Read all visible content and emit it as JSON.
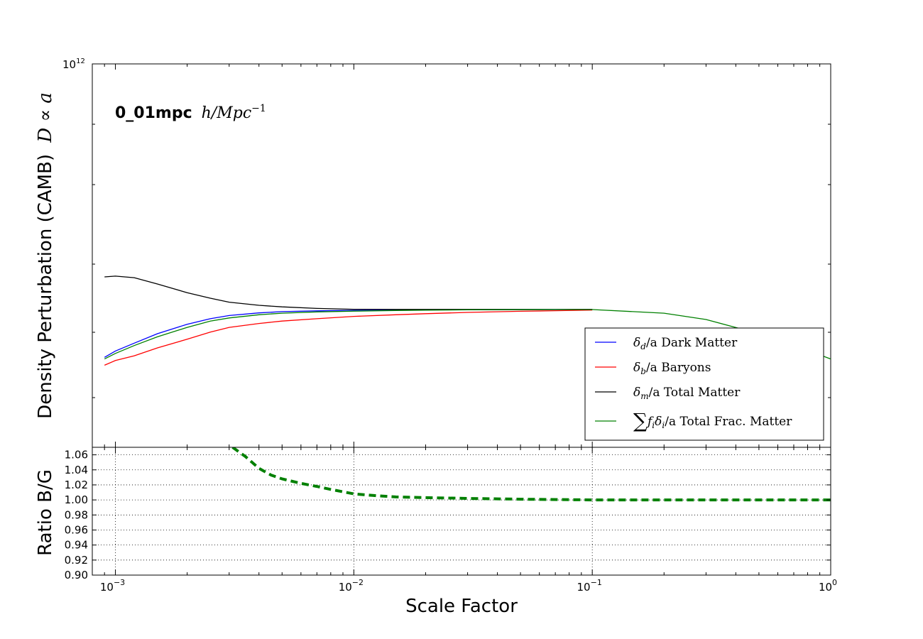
{
  "chart_data": [
    {
      "type": "line",
      "panel": "top",
      "ylabel": "Density Perturbation (CAMB)",
      "ylabel_math": "D ∝ a",
      "annotation_bold": "0_01mpc",
      "annotation_math": "h/Mpc",
      "annotation_sup": "−1",
      "xscale": "log",
      "yscale": "log",
      "xlim": [
        0.0008,
        1.0
      ],
      "ylim_top_tick": "10",
      "ylim_top_tick_sup": "12",
      "grid": false,
      "legend_position": "lower-right",
      "legend": [
        {
          "prefix": "δ",
          "sub": "d",
          "suffix": "/a Dark Matter",
          "color": "#0000ff"
        },
        {
          "prefix": "δ",
          "sub": "b",
          "suffix": "/a Baryons",
          "color": "#ff0000"
        },
        {
          "prefix": "δ",
          "sub": "m",
          "suffix": "/a Total Matter",
          "color": "#000000"
        },
        {
          "prefix": "∑f",
          "sub": "i",
          "mid": "δ",
          "sub2": "i",
          "suffix": "/a Total Frac. Matter",
          "color": "#008000"
        }
      ],
      "series": [
        {
          "key": "dark",
          "color": "#0000ff",
          "x": [
            0.0009,
            0.001,
            0.0012,
            0.0015,
            0.002,
            0.0025,
            0.003,
            0.004,
            0.005,
            0.007,
            0.01,
            0.015,
            0.02,
            0.03,
            0.05,
            0.07,
            0.1
          ],
          "y": [
            0.57,
            0.61,
            0.66,
            0.72,
            0.78,
            0.815,
            0.835,
            0.852,
            0.86,
            0.865,
            0.868,
            0.87,
            0.871,
            0.872,
            0.873,
            0.873,
            0.874
          ]
        },
        {
          "key": "baryons",
          "color": "#ff0000",
          "x": [
            0.0009,
            0.001,
            0.0012,
            0.0015,
            0.002,
            0.0025,
            0.003,
            0.004,
            0.005,
            0.007,
            0.01,
            0.015,
            0.02,
            0.03,
            0.05,
            0.07,
            0.1
          ],
          "y": [
            0.52,
            0.55,
            0.58,
            0.63,
            0.685,
            0.73,
            0.76,
            0.785,
            0.8,
            0.815,
            0.83,
            0.84,
            0.847,
            0.855,
            0.862,
            0.866,
            0.87
          ]
        },
        {
          "key": "total",
          "color": "#000000",
          "x": [
            0.0009,
            0.001,
            0.0012,
            0.0015,
            0.002,
            0.0025,
            0.003,
            0.004,
            0.005,
            0.007,
            0.01,
            0.015,
            0.02,
            0.03,
            0.05,
            0.07,
            0.1
          ],
          "y": [
            1.08,
            1.085,
            1.075,
            1.035,
            0.98,
            0.945,
            0.92,
            0.9,
            0.89,
            0.88,
            0.875,
            0.874,
            0.874,
            0.874,
            0.874,
            0.874,
            0.874
          ]
        },
        {
          "key": "frac",
          "color": "#008000",
          "x": [
            0.0009,
            0.001,
            0.0012,
            0.0015,
            0.002,
            0.0025,
            0.003,
            0.004,
            0.005,
            0.007,
            0.01,
            0.015,
            0.02,
            0.03,
            0.05,
            0.07,
            0.1,
            0.2,
            0.3,
            0.5,
            0.7,
            0.85,
            1.0
          ],
          "y": [
            0.56,
            0.595,
            0.645,
            0.7,
            0.76,
            0.8,
            0.82,
            0.84,
            0.85,
            0.858,
            0.863,
            0.867,
            0.869,
            0.871,
            0.872,
            0.873,
            0.873,
            0.85,
            0.81,
            0.72,
            0.64,
            0.6,
            0.56
          ]
        }
      ]
    },
    {
      "type": "line",
      "panel": "bottom",
      "xlabel": "Scale Factor",
      "ylabel": "Ratio B/G",
      "xscale": "log",
      "xlim": [
        0.0008,
        1.0
      ],
      "ylim": [
        0.9,
        1.07
      ],
      "yticks": [
        0.9,
        0.92,
        0.94,
        0.96,
        0.98,
        1.0,
        1.02,
        1.04,
        1.06
      ],
      "ytick_labels": [
        "0.90",
        "0.92",
        "0.94",
        "0.96",
        "0.98",
        "1.00",
        "1.02",
        "1.04",
        "1.06"
      ],
      "xticks": [
        0.001,
        0.01,
        0.1,
        1.0
      ],
      "xtick_labels": [
        {
          "base": "10",
          "sup": "−3"
        },
        {
          "base": "10",
          "sup": "−2"
        },
        {
          "base": "10",
          "sup": "−1"
        },
        {
          "base": "10",
          "sup": "0"
        }
      ],
      "grid": true,
      "series": [
        {
          "key": "ratio",
          "color": "#008000",
          "style": "dashed",
          "x": [
            0.0031,
            0.0035,
            0.004,
            0.0045,
            0.005,
            0.006,
            0.007,
            0.008,
            0.01,
            0.012,
            0.015,
            0.02,
            0.03,
            0.05,
            0.1,
            0.2,
            0.5,
            1.0
          ],
          "y": [
            1.07,
            1.058,
            1.042,
            1.033,
            1.028,
            1.022,
            1.018,
            1.014,
            1.008,
            1.006,
            1.004,
            1.003,
            1.002,
            1.001,
            1.0,
            1.0,
            1.0,
            1.0
          ]
        }
      ]
    }
  ]
}
